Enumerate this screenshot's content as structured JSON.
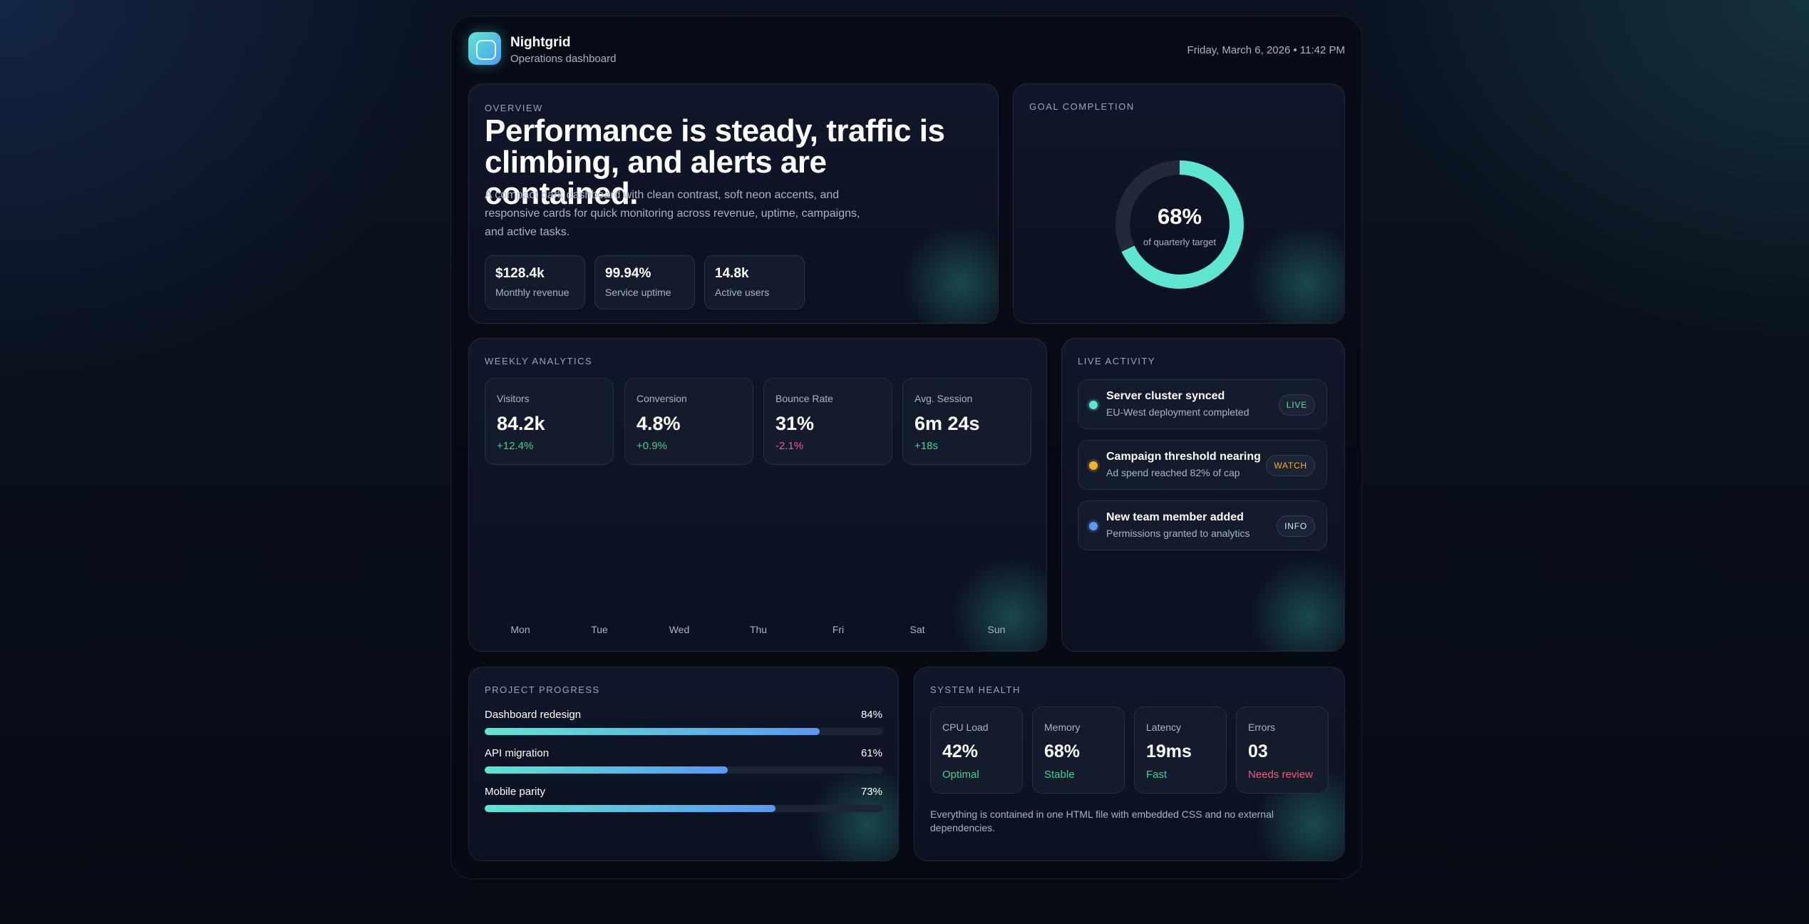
{
  "header": {
    "brand": "Nightgrid",
    "subtitle": "Operations dashboard",
    "datetime": "Friday, March 6, 2026 • 11:42 PM"
  },
  "overview": {
    "eyebrow": "OVERVIEW",
    "headline": "Performance is steady, traffic is climbing, and alerts are contained.",
    "description": "A compact dark dashboard with clean contrast, soft neon accents, and responsive cards for quick monitoring across revenue, uptime, campaigns, and active tasks.",
    "kpis": [
      {
        "value": "$128.4k",
        "label": "Monthly revenue"
      },
      {
        "value": "99.94%",
        "label": "Service uptime"
      },
      {
        "value": "14.8k",
        "label": "Active users"
      }
    ]
  },
  "goal": {
    "eyebrow": "GOAL COMPLETION",
    "percent_label": "68%",
    "percent_value": 68,
    "caption": "of quarterly target"
  },
  "analytics": {
    "eyebrow": "WEEKLY ANALYTICS",
    "stats": [
      {
        "label": "Visitors",
        "value": "84.2k",
        "delta": "+12.4%",
        "trend": "up"
      },
      {
        "label": "Conversion",
        "value": "4.8%",
        "delta": "+0.9%",
        "trend": "up"
      },
      {
        "label": "Bounce Rate",
        "value": "31%",
        "delta": "-2.1%",
        "trend": "down"
      },
      {
        "label": "Avg. Session",
        "value": "6m 24s",
        "delta": "+18s",
        "trend": "up"
      }
    ],
    "days": [
      "Mon",
      "Tue",
      "Wed",
      "Thu",
      "Fri",
      "Sat",
      "Sun"
    ]
  },
  "activity": {
    "eyebrow": "LIVE ACTIVITY",
    "items": [
      {
        "title": "Server cluster synced",
        "subtitle": "EU-West deployment completed",
        "badge": "LIVE",
        "color": "#5ee6d2",
        "badge_color": "#5ee6a0"
      },
      {
        "title": "Campaign threshold nearing",
        "subtitle": "Ad spend reached 82% of cap",
        "badge": "WATCH",
        "color": "#f5b02a",
        "badge_color": "#f5b02a"
      },
      {
        "title": "New team member added",
        "subtitle": "Permissions granted to analytics",
        "badge": "INFO",
        "color": "#5a98f2",
        "badge_color": "#dfe5f0"
      }
    ]
  },
  "projects": {
    "eyebrow": "PROJECT PROGRESS",
    "items": [
      {
        "name": "Dashboard redesign",
        "percent_label": "84%",
        "percent": 84
      },
      {
        "name": "API migration",
        "percent_label": "61%",
        "percent": 61
      },
      {
        "name": "Mobile parity",
        "percent_label": "73%",
        "percent": 73
      }
    ]
  },
  "health": {
    "eyebrow": "SYSTEM HEALTH",
    "metrics": [
      {
        "label": "CPU Load",
        "value": "42%",
        "status": "Optimal",
        "status_color": "#3fd38a"
      },
      {
        "label": "Memory",
        "value": "68%",
        "status": "Stable",
        "status_color": "#3fd38a"
      },
      {
        "label": "Latency",
        "value": "19ms",
        "status": "Fast",
        "status_color": "#3fd38a"
      },
      {
        "label": "Errors",
        "value": "03",
        "status": "Needs review",
        "status_color": "#f05c7a"
      }
    ],
    "note": "Everything is contained in one HTML file with embedded CSS and no external dependencies."
  },
  "colors": {
    "accent": "#5ee6d2",
    "accent2": "#5a98f2",
    "positive": "#3fd38a",
    "negative": "#f05c7a"
  }
}
